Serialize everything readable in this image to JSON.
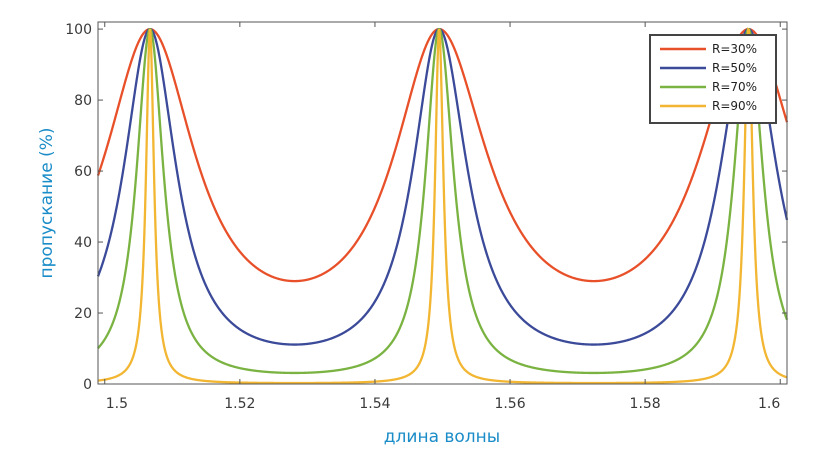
{
  "chart_data": {
    "type": "line",
    "title": "",
    "xlabel": "длина волны",
    "ylabel": "пропускание (%)",
    "xlim": [
      1.499,
      1.601
    ],
    "ylim": [
      0,
      102
    ],
    "x_ticks": [
      1.5,
      1.52,
      1.54,
      1.56,
      1.58,
      1.6
    ],
    "x_tick_labels": [
      "1.5",
      "1.52",
      "1.54",
      "1.56",
      "1.58",
      "1.6"
    ],
    "y_ticks": [
      0,
      20,
      40,
      60,
      80,
      100
    ],
    "y_tick_labels": [
      "0",
      "20",
      "40",
      "60",
      "80",
      "100"
    ],
    "grid": false,
    "legend_position": "top-right",
    "peaks_at_x": [
      1.5067,
      1.5495,
      1.5953
    ],
    "series": [
      {
        "name": "R=30%",
        "color": "#e8502a",
        "reflectance": 0.3,
        "min_transmission": 29.5
      },
      {
        "name": "R=50%",
        "color": "#3b4a99",
        "reflectance": 0.5,
        "min_transmission": 11.1
      },
      {
        "name": "R=70%",
        "color": "#7ab342",
        "reflectance": 0.7,
        "min_transmission": 3.1
      },
      {
        "name": "R=90%",
        "color": "#f2b632",
        "reflectance": 0.9,
        "min_transmission": 0.3
      }
    ]
  }
}
